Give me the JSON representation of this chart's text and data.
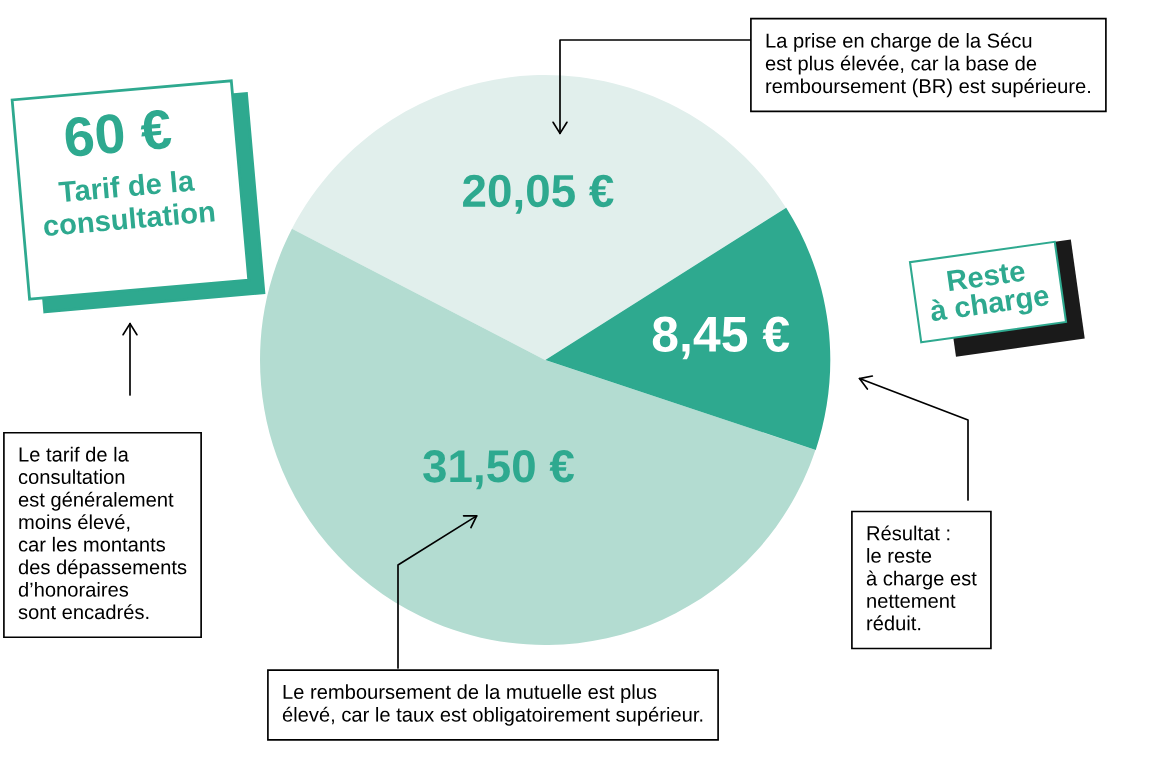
{
  "chart_data": {
    "type": "pie",
    "categories": [
      null,
      null,
      "Reste\nà charge"
    ],
    "values": [
      20.05,
      31.5,
      8.45
    ],
    "value_labels": [
      "20,05 €",
      "31,50 €",
      "8,45 €"
    ],
    "colors": [
      "#e1efec",
      "#b3dcd1",
      "#2ea98f"
    ],
    "legend": false,
    "annotations": [
      "60 €",
      "Tarif de la\nconsultation",
      "La prise en charge de la Sécu\nest plus élevée, car la base de\nremboursement (BR) est supérieure.",
      "Le tarif de la\nconsultation\nest généralement\nmoins élevé,\ncar les montants\ndes dépassements\nd’honoraires\nsont encadrés.",
      "Résultat :\nle reste\nà charge est\nnettement\nréduit.",
      "Le remboursement de la mutuelle est plus\nélevé, car le taux est obligatoirement supérieur."
    ]
  }
}
